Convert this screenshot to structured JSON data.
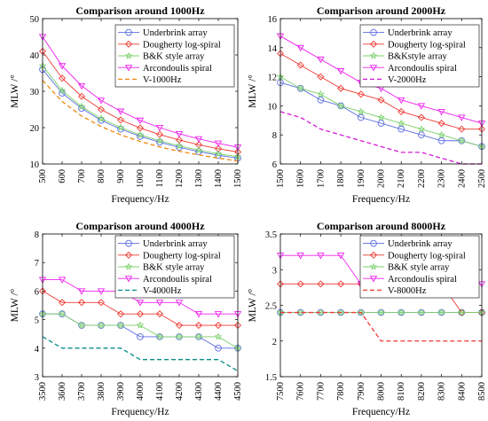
{
  "figure": {
    "xlabel": "Frequency/Hz",
    "ylabel": "MLW /°"
  },
  "colors": {
    "underbrink": "#5b6de0",
    "dougherty": "#ee3a33",
    "bk": "#7bd06a",
    "arcondoulis": "#ee22ee",
    "v": "#ee8a10",
    "v2000": "#d51bd5",
    "v4000": "#0b8a8a",
    "v8000": "#ee3a33"
  },
  "chart_data": [
    {
      "type": "line",
      "title": "Comparison around 1000Hz",
      "xlabel": "Frequency/Hz",
      "ylabel": "MLW /°",
      "xlim": [
        500,
        1500
      ],
      "ylim": [
        10,
        50
      ],
      "xticks": [
        500,
        600,
        700,
        800,
        900,
        1000,
        1100,
        1200,
        1300,
        1400,
        1500
      ],
      "yticks": [
        10,
        20,
        30,
        40,
        50
      ],
      "x": [
        500,
        600,
        700,
        800,
        900,
        1000,
        1100,
        1200,
        1300,
        1400,
        1500
      ],
      "series": [
        {
          "name": "Underbrink array",
          "marker": "circle",
          "dashed": false,
          "color_key": "underbrink",
          "values": [
            36.0,
            29.5,
            25.3,
            22.0,
            19.6,
            17.6,
            16.0,
            14.6,
            13.4,
            12.4,
            11.6
          ]
        },
        {
          "name": "Dougherty log-spiral",
          "marker": "diamond",
          "dashed": false,
          "color_key": "dougherty",
          "values": [
            41.0,
            33.6,
            28.6,
            25.0,
            22.1,
            19.9,
            18.1,
            16.6,
            15.3,
            14.2,
            13.3
          ]
        },
        {
          "name": "B&K style array",
          "marker": "star",
          "dashed": false,
          "color_key": "bk",
          "values": [
            37.0,
            30.2,
            25.8,
            22.5,
            20.0,
            18.0,
            16.4,
            15.0,
            13.8,
            12.8,
            12.0
          ]
        },
        {
          "name": "Arcondoulis spiral",
          "marker": "triangle-down",
          "dashed": false,
          "color_key": "arcondoulis",
          "values": [
            45.0,
            37.0,
            31.5,
            27.5,
            24.5,
            22.0,
            20.0,
            18.3,
            16.9,
            15.7,
            14.6
          ]
        },
        {
          "name": "V-1000Hz",
          "marker": "none",
          "dashed": true,
          "color_key": "v",
          "values": [
            33.0,
            27.2,
            23.2,
            20.3,
            18.0,
            16.2,
            14.7,
            13.5,
            12.5,
            11.6,
            10.8
          ]
        }
      ]
    },
    {
      "type": "line",
      "title": "Comparison around 2000Hz",
      "xlabel": "Frequency/Hz",
      "ylabel": "MLW /°",
      "xlim": [
        1500,
        2500
      ],
      "ylim": [
        6,
        16
      ],
      "xticks": [
        1500,
        1600,
        1700,
        1800,
        1900,
        2000,
        2100,
        2200,
        2300,
        2400,
        2500
      ],
      "yticks": [
        6,
        8,
        10,
        12,
        14,
        16
      ],
      "x": [
        1500,
        1600,
        1700,
        1800,
        1900,
        2000,
        2100,
        2200,
        2300,
        2400,
        2500
      ],
      "series": [
        {
          "name": "Underbrink array",
          "marker": "circle",
          "dashed": false,
          "color_key": "underbrink",
          "values": [
            11.6,
            11.2,
            10.4,
            10.0,
            9.2,
            8.8,
            8.4,
            8.0,
            7.6,
            7.6,
            7.2
          ]
        },
        {
          "name": "Dougherty log-spiral",
          "marker": "diamond",
          "dashed": false,
          "color_key": "dougherty",
          "values": [
            13.6,
            12.8,
            12.0,
            11.2,
            10.8,
            10.4,
            9.6,
            9.2,
            8.8,
            8.4,
            8.4
          ]
        },
        {
          "name": "B&Kstyle array",
          "marker": "star",
          "dashed": false,
          "color_key": "bk",
          "values": [
            12.0,
            11.2,
            10.8,
            10.0,
            9.6,
            9.2,
            8.8,
            8.4,
            8.0,
            7.6,
            7.2
          ]
        },
        {
          "name": "Arcondoulis spiral",
          "marker": "triangle-down",
          "dashed": false,
          "color_key": "arcondoulis",
          "values": [
            14.8,
            14.0,
            13.2,
            12.4,
            11.6,
            11.2,
            10.4,
            10.0,
            9.6,
            9.2,
            8.8
          ]
        },
        {
          "name": "V-2000Hz",
          "marker": "none",
          "dashed": true,
          "color_key": "v2000",
          "values": [
            9.6,
            9.2,
            8.4,
            8.0,
            7.6,
            7.2,
            6.8,
            6.8,
            6.4,
            6.0,
            6.0
          ]
        }
      ]
    },
    {
      "type": "line",
      "title": "Comparison around 4000Hz",
      "xlabel": "Frequency/Hz",
      "ylabel": "MLW /°",
      "xlim": [
        3500,
        4500
      ],
      "ylim": [
        3,
        8
      ],
      "xticks": [
        3500,
        3600,
        3700,
        3800,
        3900,
        4000,
        4100,
        4200,
        4300,
        4400,
        4500
      ],
      "yticks": [
        3,
        4,
        5,
        6,
        7,
        8
      ],
      "x": [
        3500,
        3600,
        3700,
        3800,
        3900,
        4000,
        4100,
        4200,
        4300,
        4400,
        4500
      ],
      "series": [
        {
          "name": "Underbrink array",
          "marker": "circle",
          "dashed": false,
          "color_key": "underbrink",
          "values": [
            5.2,
            5.2,
            4.8,
            4.8,
            4.8,
            4.4,
            4.4,
            4.4,
            4.4,
            4.0,
            4.0
          ]
        },
        {
          "name": "Dougherty log-spiral",
          "marker": "diamond",
          "dashed": false,
          "color_key": "dougherty",
          "values": [
            6.0,
            5.6,
            5.6,
            5.6,
            5.2,
            5.2,
            5.2,
            4.8,
            4.8,
            4.8,
            4.8
          ]
        },
        {
          "name": "B&K style array",
          "marker": "star",
          "dashed": false,
          "color_key": "bk",
          "values": [
            5.2,
            5.2,
            4.8,
            4.8,
            4.8,
            4.8,
            4.4,
            4.4,
            4.4,
            4.4,
            4.0
          ]
        },
        {
          "name": "Arcondoulis spiral",
          "marker": "triangle-down",
          "dashed": false,
          "color_key": "arcondoulis",
          "values": [
            6.4,
            6.4,
            6.0,
            6.0,
            6.0,
            5.6,
            5.6,
            5.6,
            5.2,
            5.2,
            5.2
          ]
        },
        {
          "name": "V-4000Hz",
          "marker": "none",
          "dashed": true,
          "color_key": "v4000",
          "values": [
            4.4,
            4.0,
            4.0,
            4.0,
            4.0,
            3.6,
            3.6,
            3.6,
            3.6,
            3.6,
            3.2
          ]
        }
      ]
    },
    {
      "type": "line",
      "title": "Comparison around 8000Hz",
      "xlabel": "Frequency/Hz",
      "ylabel": "MLW /°",
      "xlim": [
        7500,
        8500
      ],
      "ylim": [
        1.5,
        3.5
      ],
      "xticks": [
        7500,
        7600,
        7700,
        7800,
        7900,
        8000,
        8100,
        8200,
        8300,
        8400,
        8500
      ],
      "yticks": [
        1.5,
        2,
        2.5,
        3,
        3.5
      ],
      "x": [
        7500,
        7600,
        7700,
        7800,
        7900,
        8000,
        8100,
        8200,
        8300,
        8400,
        8500
      ],
      "series": [
        {
          "name": "Underbrink array",
          "marker": "circle",
          "dashed": false,
          "color_key": "underbrink",
          "values": [
            2.4,
            2.4,
            2.4,
            2.4,
            2.4,
            2.4,
            2.4,
            2.4,
            2.4,
            2.4,
            2.4
          ]
        },
        {
          "name": "Dougherty log-spiral",
          "marker": "diamond",
          "dashed": false,
          "color_key": "dougherty",
          "values": [
            2.8,
            2.8,
            2.8,
            2.8,
            2.8,
            2.8,
            2.8,
            2.8,
            2.8,
            2.4,
            2.4
          ]
        },
        {
          "name": "B&K style array",
          "marker": "star",
          "dashed": false,
          "color_key": "bk",
          "values": [
            2.4,
            2.4,
            2.4,
            2.4,
            2.4,
            2.4,
            2.4,
            2.4,
            2.4,
            2.4,
            2.4
          ]
        },
        {
          "name": "Arcondoulis spiral",
          "marker": "triangle-down",
          "dashed": false,
          "color_key": "arcondoulis",
          "values": [
            3.2,
            3.2,
            3.2,
            3.2,
            2.8,
            2.8,
            2.8,
            2.8,
            2.8,
            2.8,
            2.8
          ]
        },
        {
          "name": "V-8000Hz",
          "marker": "none",
          "dashed": true,
          "color_key": "v8000",
          "values": [
            2.4,
            2.4,
            2.4,
            2.4,
            2.4,
            2.0,
            2.0,
            2.0,
            2.0,
            2.0,
            2.0
          ]
        }
      ]
    }
  ]
}
